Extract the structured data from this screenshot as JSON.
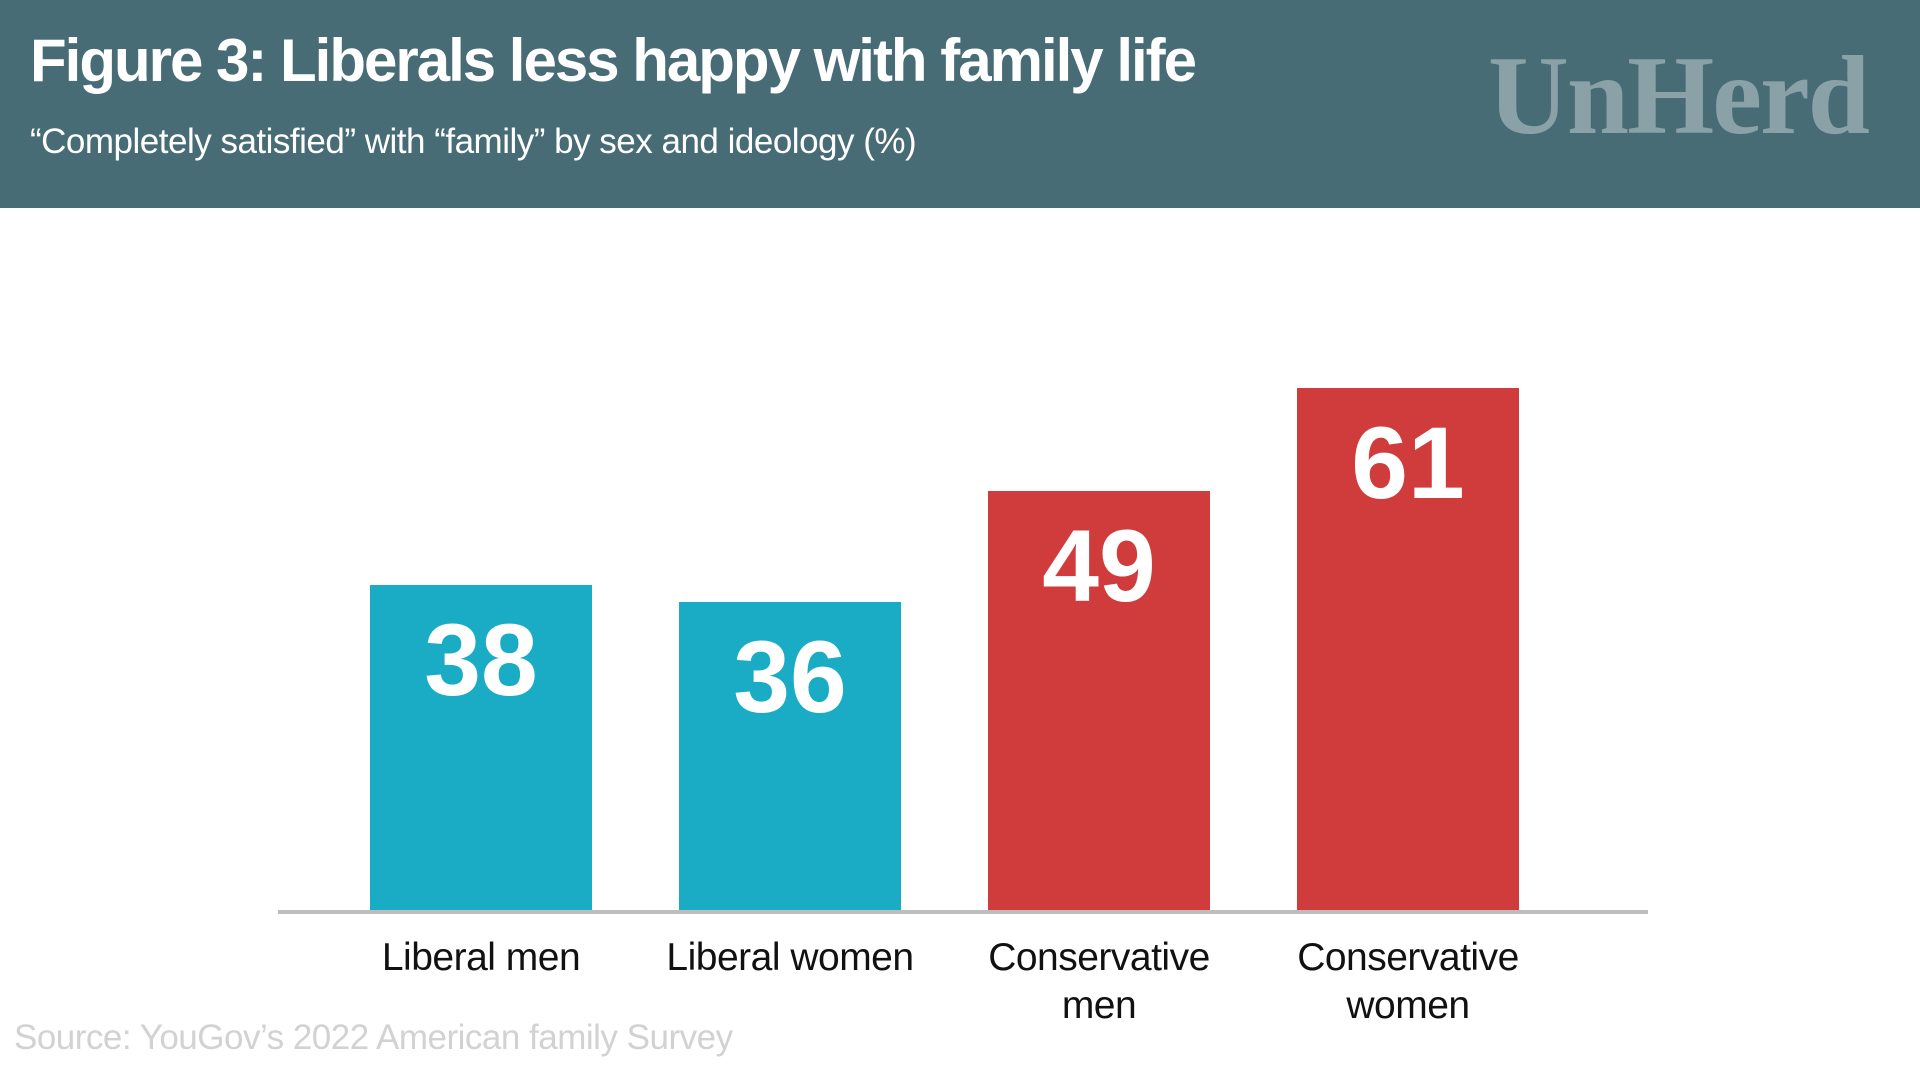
{
  "header": {
    "title": "Figure 3: Liberals less happy with family life",
    "subtitle": "“Completely satisfied” with “family” by sex and ideology (%)",
    "brand": "UnHerd",
    "background": "#476C75",
    "brand_color": "#8AA1A8",
    "text_color": "#FFFFFF"
  },
  "chart_data": {
    "type": "bar",
    "title": "Figure 3: Liberals less happy with family life",
    "subtitle": "“Completely satisfied” with “family” by sex and ideology (%)",
    "categories": [
      "Liberal men",
      "Liberal women",
      "Conservative men",
      "Conservative women"
    ],
    "values": [
      38,
      36,
      49,
      61
    ],
    "bar_colors": [
      "#1AACC4",
      "#1AACC4",
      "#D03B3B",
      "#D03B3B"
    ],
    "value_label_color": "#FFFFFF",
    "category_label_color": "#111111",
    "axis_line_color": "#BDBDBD",
    "xlabel": "",
    "ylabel": "",
    "ylim": [
      0,
      65
    ],
    "grid": false,
    "legend": false,
    "value_labels_shown_inside_bars": true
  },
  "footer": {
    "source": "Source: YouGov’s 2022 American family Survey",
    "source_color": "#D2D2D2"
  }
}
